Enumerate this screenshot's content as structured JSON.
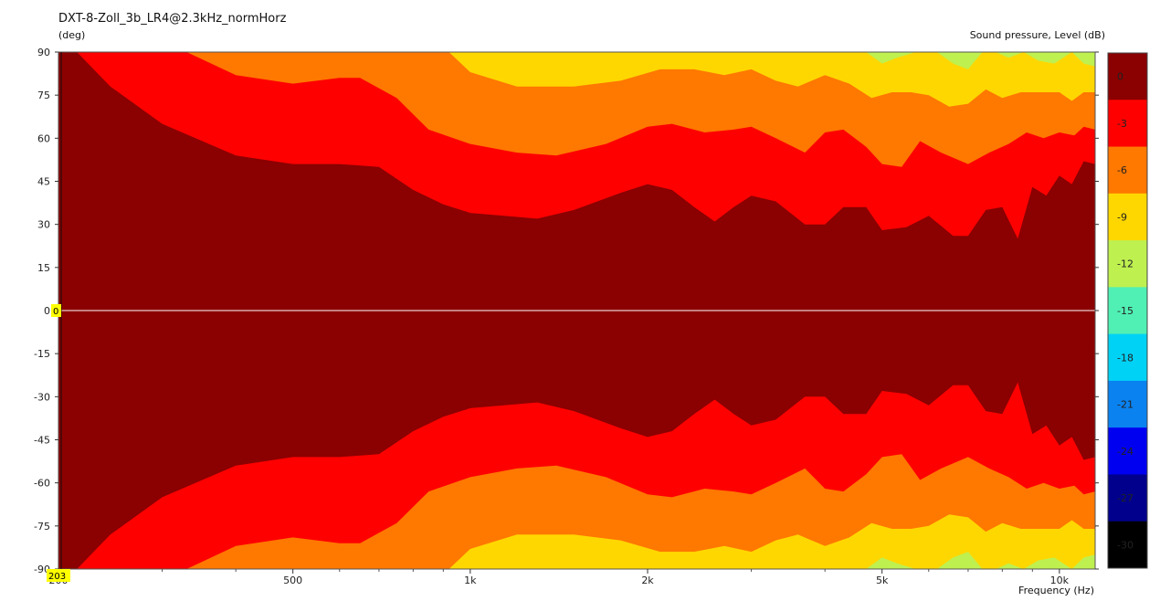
{
  "title": "DXT-8-Zoll_3b_LR4@2.3kHz_normHorz",
  "y_unit": "(deg)",
  "z_label": "Sound pressure, Level  (dB)",
  "x_label": "Frequency  (Hz)",
  "marker_y": "0",
  "marker_x": "203",
  "chart_data": {
    "type": "heatmap",
    "title": "DXT-8-Zoll_3b_LR4@2.3kHz_normHorz",
    "xlabel": "Frequency  (Hz)",
    "ylabel": "(deg)",
    "zlabel": "Sound pressure, Level  (dB)",
    "x_scale": "log",
    "xlim": [
      200,
      11500
    ],
    "ylim": [
      -90,
      90
    ],
    "x_ticks": [
      {
        "value": 200,
        "label": "200"
      },
      {
        "value": 500,
        "label": "500"
      },
      {
        "value": 1000,
        "label": "1k"
      },
      {
        "value": 2000,
        "label": "2k"
      },
      {
        "value": 5000,
        "label": "5k"
      },
      {
        "value": 10000,
        "label": "10k"
      }
    ],
    "y_ticks": [
      90,
      75,
      60,
      45,
      30,
      15,
      0,
      -15,
      -30,
      -45,
      -60,
      -75,
      -90
    ],
    "y_tick_labels": [
      "90",
      "75",
      "60",
      "45",
      "30",
      "15",
      "0",
      "-15",
      "-30",
      "-45",
      "-60",
      "-75",
      "-90"
    ],
    "color_scale": [
      {
        "label": "0",
        "color": "#8b0000"
      },
      {
        "label": "-3",
        "color": "#ff0000"
      },
      {
        "label": "-6",
        "color": "#ff7800"
      },
      {
        "label": "-9",
        "color": "#ffd700"
      },
      {
        "label": "-12",
        "color": "#bef050"
      },
      {
        "label": "-15",
        "color": "#50f0b4"
      },
      {
        "label": "-18",
        "color": "#00d2f5"
      },
      {
        "label": "-21",
        "color": "#0a82f0"
      },
      {
        "label": "-24",
        "color": "#0000f0"
      },
      {
        "label": "-27",
        "color": "#00008c"
      },
      {
        "label": "-30",
        "color": "#000000"
      }
    ],
    "contours": [
      {
        "level": "-3",
        "points": [
          [
            215,
            90
          ],
          [
            245,
            78
          ],
          [
            300,
            65
          ],
          [
            400,
            54
          ],
          [
            500,
            51
          ],
          [
            600,
            51
          ],
          [
            700,
            50
          ],
          [
            800,
            42
          ],
          [
            900,
            37
          ],
          [
            1000,
            34
          ],
          [
            1300,
            32
          ],
          [
            1500,
            35
          ],
          [
            1800,
            41
          ],
          [
            2000,
            44
          ],
          [
            2200,
            42
          ],
          [
            2400,
            36
          ],
          [
            2600,
            31
          ],
          [
            2800,
            36
          ],
          [
            3000,
            40
          ],
          [
            3300,
            38
          ],
          [
            3700,
            30
          ],
          [
            4000,
            30
          ],
          [
            4300,
            36
          ],
          [
            4700,
            36
          ],
          [
            5000,
            28
          ],
          [
            5500,
            29
          ],
          [
            6000,
            33
          ],
          [
            6600,
            26
          ],
          [
            7000,
            26
          ],
          [
            7500,
            35
          ],
          [
            8000,
            36
          ],
          [
            8500,
            25
          ],
          [
            9000,
            43
          ],
          [
            9500,
            40
          ],
          [
            10000,
            47
          ],
          [
            10500,
            44
          ],
          [
            11000,
            52
          ],
          [
            11500,
            51
          ]
        ]
      },
      {
        "level": "-6",
        "points": [
          [
            330,
            90
          ],
          [
            400,
            82
          ],
          [
            500,
            79
          ],
          [
            600,
            81
          ],
          [
            650,
            81
          ],
          [
            750,
            74
          ],
          [
            850,
            63
          ],
          [
            1000,
            58
          ],
          [
            1200,
            55
          ],
          [
            1400,
            54
          ],
          [
            1700,
            58
          ],
          [
            2000,
            64
          ],
          [
            2200,
            65
          ],
          [
            2500,
            62
          ],
          [
            2800,
            63
          ],
          [
            3000,
            64
          ],
          [
            3300,
            60
          ],
          [
            3700,
            55
          ],
          [
            4000,
            62
          ],
          [
            4300,
            63
          ],
          [
            4700,
            57
          ],
          [
            5000,
            51
          ],
          [
            5400,
            50
          ],
          [
            5800,
            59
          ],
          [
            6300,
            55
          ],
          [
            7000,
            51
          ],
          [
            7600,
            55
          ],
          [
            8200,
            58
          ],
          [
            8800,
            62
          ],
          [
            9400,
            60
          ],
          [
            10000,
            62
          ],
          [
            10600,
            61
          ],
          [
            11000,
            64
          ],
          [
            11500,
            63
          ]
        ]
      },
      {
        "level": "-9",
        "points": [
          [
            920,
            90
          ],
          [
            1000,
            83
          ],
          [
            1200,
            78
          ],
          [
            1500,
            78
          ],
          [
            1800,
            80
          ],
          [
            2100,
            84
          ],
          [
            2400,
            84
          ],
          [
            2700,
            82
          ],
          [
            3000,
            84
          ],
          [
            3300,
            80
          ],
          [
            3600,
            78
          ],
          [
            4000,
            82
          ],
          [
            4400,
            79
          ],
          [
            4800,
            74
          ],
          [
            5200,
            76
          ],
          [
            5600,
            76
          ],
          [
            6000,
            75
          ],
          [
            6500,
            71
          ],
          [
            7000,
            72
          ],
          [
            7500,
            77
          ],
          [
            8000,
            74
          ],
          [
            8600,
            76
          ],
          [
            9200,
            76
          ],
          [
            10000,
            76
          ],
          [
            10500,
            73
          ],
          [
            11000,
            76
          ],
          [
            11500,
            76
          ]
        ]
      },
      {
        "level": "-12",
        "points": [
          [
            4700,
            90
          ],
          [
            5000,
            86
          ],
          [
            5300,
            88
          ],
          [
            5700,
            90
          ],
          [
            6200,
            90
          ],
          [
            6600,
            86
          ],
          [
            7000,
            84
          ],
          [
            7400,
            90
          ],
          [
            7800,
            90
          ],
          [
            8200,
            88
          ],
          [
            8700,
            90
          ],
          [
            9200,
            87
          ],
          [
            9800,
            86
          ],
          [
            10500,
            90
          ],
          [
            11000,
            86
          ],
          [
            11500,
            85
          ]
        ]
      }
    ]
  }
}
